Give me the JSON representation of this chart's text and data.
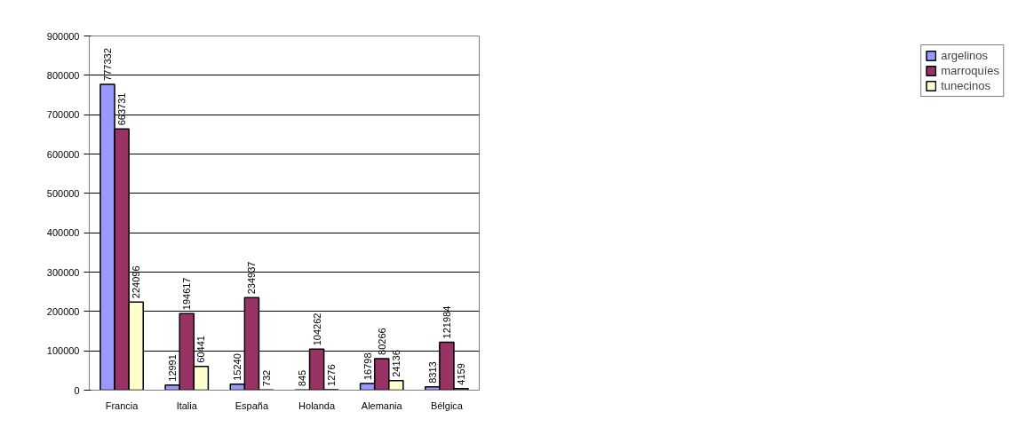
{
  "chart_data": {
    "type": "bar",
    "categories": [
      "Francia",
      "Italia",
      "España",
      "Holanda",
      "Alemania",
      "Bélgica"
    ],
    "series": [
      {
        "name": "argelinos",
        "color": "#9999ff",
        "values": [
          777332,
          12991,
          15240,
          845,
          16798,
          8313
        ]
      },
      {
        "name": "marroquíes",
        "color": "#993366",
        "values": [
          663731,
          194617,
          234937,
          104262,
          80266,
          121984
        ]
      },
      {
        "name": "tunecinos",
        "color": "#ffffcc",
        "values": [
          224096,
          60441,
          732,
          1276,
          24136,
          4159
        ]
      }
    ],
    "ylim": [
      0,
      900000
    ],
    "yticks": [
      0,
      100000,
      200000,
      300000,
      400000,
      500000,
      600000,
      700000,
      800000,
      900000
    ],
    "grid": "y",
    "legend": "right",
    "data_labels": true
  }
}
